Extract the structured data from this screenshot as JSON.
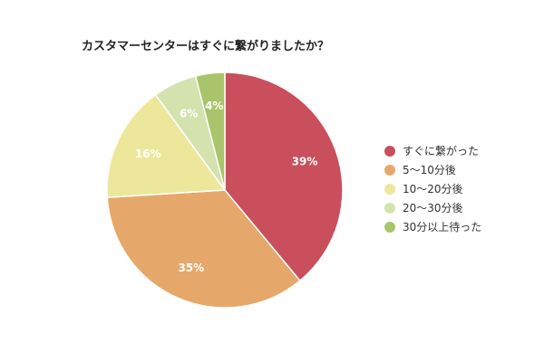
{
  "chart_data": {
    "type": "pie",
    "title": "カスタマーセンターはすぐに繋がりましたか？",
    "legend_position": "right",
    "slices": [
      {
        "label": "すぐに繋がった",
        "value": 39,
        "display": "39%",
        "color": "#c94f5c"
      },
      {
        "label": "5〜10分後",
        "value": 35,
        "display": "35%",
        "color": "#e6a86a"
      },
      {
        "label": "10〜20分後",
        "value": 16,
        "display": "16%",
        "color": "#ede79c"
      },
      {
        "label": "20〜30分後",
        "value": 6,
        "display": "6%",
        "color": "#d4e2ae"
      },
      {
        "label": "30分以上待った",
        "value": 4,
        "display": "4%",
        "color": "#a9c46a"
      }
    ]
  }
}
